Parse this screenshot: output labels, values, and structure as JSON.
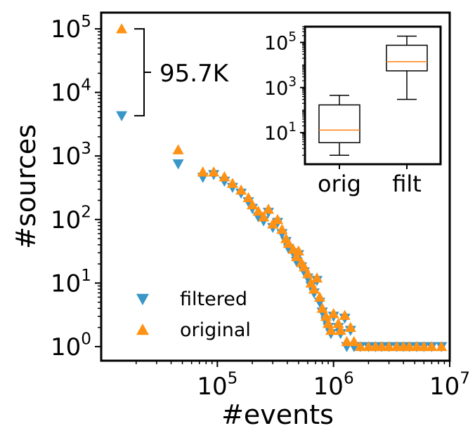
{
  "chart_data": [
    {
      "type": "scatter",
      "title": "",
      "xlabel": "#events",
      "ylabel": "#sources",
      "x_scale": "log",
      "y_scale": "log",
      "xlim": [
        10000,
        10000000
      ],
      "ylim": [
        0.6,
        180000
      ],
      "x_ticks": [
        {
          "value": 100000,
          "base": "10",
          "exp": "5"
        },
        {
          "value": 1000000,
          "base": "10",
          "exp": "6"
        },
        {
          "value": 10000000,
          "base": "10",
          "exp": "7"
        }
      ],
      "y_ticks": [
        {
          "value": 1,
          "base": "10",
          "exp": "0"
        },
        {
          "value": 10,
          "base": "10",
          "exp": "1"
        },
        {
          "value": 100,
          "base": "10",
          "exp": "2"
        },
        {
          "value": 1000,
          "base": "10",
          "exp": "3"
        },
        {
          "value": 10000,
          "base": "10",
          "exp": "4"
        },
        {
          "value": 100000,
          "base": "10",
          "exp": "5"
        }
      ],
      "grid": false,
      "legend_position": "lower-left",
      "annotation": {
        "text": "95.7K",
        "x": 15000,
        "y_top": 100000,
        "y_bottom": 4300
      },
      "series": [
        {
          "name": "filtered",
          "marker": "triangle-down",
          "color": "#3a96c8",
          "points": [
            [
              15000,
              4300
            ],
            [
              46000,
              750
            ],
            [
              75000,
              460
            ],
            [
              93000,
              510
            ],
            [
              115000,
              400
            ],
            [
              135000,
              320
            ],
            [
              160000,
              260
            ],
            [
              185000,
              190
            ],
            [
              200000,
              150
            ],
            [
              225000,
              110
            ],
            [
              250000,
              95
            ],
            [
              275000,
              130
            ],
            [
              300000,
              75
            ],
            [
              330000,
              90
            ],
            [
              360000,
              60
            ],
            [
              390000,
              45
            ],
            [
              410000,
              35
            ],
            [
              450000,
              30
            ],
            [
              480000,
              22
            ],
            [
              500000,
              28
            ],
            [
              530000,
              18
            ],
            [
              560000,
              15
            ],
            [
              600000,
              12
            ],
            [
              640000,
              9
            ],
            [
              680000,
              7
            ],
            [
              720000,
              11
            ],
            [
              760000,
              5
            ],
            [
              800000,
              3.5
            ],
            [
              860000,
              2.5
            ],
            [
              900000,
              2
            ],
            [
              950000,
              1.6
            ],
            [
              1000000,
              3
            ],
            [
              1100000,
              2
            ],
            [
              1150000,
              1.6
            ],
            [
              1250000,
              2.8
            ],
            [
              1400000,
              1.8
            ],
            [
              1300000,
              1
            ],
            [
              1500000,
              1
            ],
            [
              1700000,
              1
            ],
            [
              2000000,
              1
            ],
            [
              2300000,
              1
            ],
            [
              2600000,
              1
            ],
            [
              3000000,
              1
            ],
            [
              3500000,
              1
            ],
            [
              4000000,
              1
            ],
            [
              4500000,
              1
            ],
            [
              5200000,
              1
            ],
            [
              6000000,
              1
            ],
            [
              7000000,
              1
            ],
            [
              8500000,
              1
            ]
          ]
        },
        {
          "name": "original",
          "marker": "triangle-up",
          "color": "#ff9214",
          "points": [
            [
              15000,
              100000
            ],
            [
              46000,
              1250
            ],
            [
              75000,
              560
            ],
            [
              93000,
              560
            ],
            [
              115000,
              470
            ],
            [
              135000,
              370
            ],
            [
              160000,
              290
            ],
            [
              185000,
              220
            ],
            [
              200000,
              170
            ],
            [
              225000,
              135
            ],
            [
              250000,
              110
            ],
            [
              275000,
              145
            ],
            [
              300000,
              85
            ],
            [
              330000,
              100
            ],
            [
              360000,
              70
            ],
            [
              390000,
              50
            ],
            [
              410000,
              42
            ],
            [
              450000,
              34
            ],
            [
              480000,
              26
            ],
            [
              500000,
              32
            ],
            [
              530000,
              21
            ],
            [
              560000,
              18
            ],
            [
              600000,
              14
            ],
            [
              640000,
              10
            ],
            [
              680000,
              8
            ],
            [
              720000,
              12
            ],
            [
              760000,
              6
            ],
            [
              800000,
              4
            ],
            [
              860000,
              3
            ],
            [
              900000,
              2.3
            ],
            [
              950000,
              1.8
            ],
            [
              1000000,
              3.3
            ],
            [
              1100000,
              2.3
            ],
            [
              1150000,
              1.8
            ],
            [
              1250000,
              3.1
            ],
            [
              1400000,
              2
            ],
            [
              1300000,
              1.2
            ],
            [
              1500000,
              1.2
            ],
            [
              1700000,
              1
            ],
            [
              2000000,
              1
            ],
            [
              2300000,
              1
            ],
            [
              2600000,
              1
            ],
            [
              3000000,
              1
            ],
            [
              3500000,
              1
            ],
            [
              4000000,
              1
            ],
            [
              4500000,
              1
            ],
            [
              5200000,
              1
            ],
            [
              6000000,
              1
            ],
            [
              7000000,
              1
            ],
            [
              8500000,
              1
            ]
          ]
        }
      ]
    },
    {
      "type": "box",
      "y_scale": "log",
      "ylim": [
        0.4,
        500000
      ],
      "categories": [
        "orig",
        "filt"
      ],
      "y_ticks": [
        {
          "value": 10,
          "base": "10",
          "exp": "1"
        },
        {
          "value": 1000,
          "base": "10",
          "exp": "3"
        },
        {
          "value": 100000,
          "base": "10",
          "exp": "5"
        }
      ],
      "median_color": "#ff7f0e",
      "boxes": [
        {
          "whisker_low": 1,
          "q1": 3.6,
          "median": 13,
          "q3": 170,
          "whisker_high": 450
        },
        {
          "whisker_low": 300,
          "q1": 5500,
          "median": 14000,
          "q3": 75000,
          "whisker_high": 190000
        }
      ]
    }
  ]
}
